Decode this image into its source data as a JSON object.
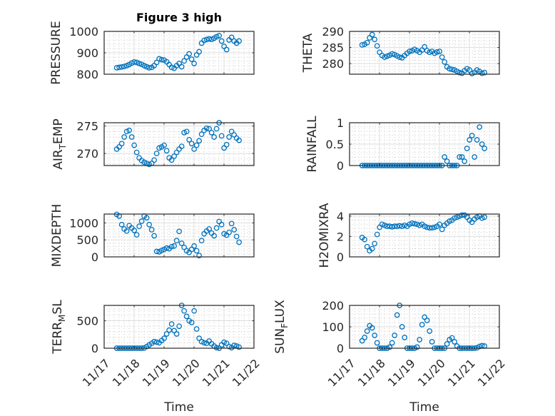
{
  "chart_data": {
    "type": "scatter",
    "title": "Figure 3 high",
    "xlabel": "Time",
    "x_unit": "days since 11/17 00:00",
    "xlim": [
      0,
      5
    ],
    "xticks": [
      0,
      1,
      2,
      3,
      4,
      5
    ],
    "xtick_labels": [
      "11/17",
      "11/18",
      "11/19",
      "11/20",
      "11/21",
      "11/22"
    ],
    "grid": "major and minor",
    "marker": "open circle",
    "marker_color": "#0072BD",
    "x": [
      0.42,
      0.503,
      0.587,
      0.67,
      0.753,
      0.837,
      0.92,
      1.003,
      1.087,
      1.17,
      1.253,
      1.337,
      1.42,
      1.503,
      1.587,
      1.67,
      1.753,
      1.837,
      1.92,
      2.003,
      2.087,
      2.17,
      2.253,
      2.337,
      2.42,
      2.503,
      2.587,
      2.67,
      2.753,
      2.837,
      2.92,
      3.003,
      3.087,
      3.17,
      3.253,
      3.337,
      3.42,
      3.503,
      3.587,
      3.67,
      3.753,
      3.837,
      3.92,
      4.003,
      4.087,
      4.17,
      4.253,
      4.337,
      4.42,
      4.503
    ],
    "subplots": [
      {
        "ylabel": [
          {
            "t": "PRESSURE"
          }
        ],
        "ylim": [
          800,
          1000
        ],
        "yticks": [
          800,
          900,
          1000
        ],
        "ytick_labels": [
          "800",
          "900",
          "1000"
        ],
        "values": [
          830,
          832,
          834,
          836,
          840,
          845,
          852,
          857,
          855,
          850,
          846,
          840,
          835,
          830,
          832,
          840,
          855,
          872,
          868,
          866,
          858,
          845,
          832,
          828,
          840,
          850,
          835,
          862,
          880,
          895,
          870,
          850,
          890,
          905,
          945,
          958,
          962,
          965,
          963,
          968,
          975,
          980,
          955,
          930,
          915,
          960,
          972,
          955,
          945,
          955
        ]
      },
      {
        "ylabel": [
          {
            "t": "THETA"
          }
        ],
        "ylim": [
          276.7,
          290
        ],
        "yticks": [
          280,
          285,
          290
        ],
        "ytick_labels": [
          "280",
          "285",
          "290"
        ],
        "values": [
          285.8,
          286.0,
          286.5,
          288.0,
          289.0,
          287.5,
          285.5,
          283.5,
          282.5,
          282.0,
          282.3,
          282.6,
          283.0,
          282.8,
          282.4,
          282.0,
          281.8,
          282.5,
          283.2,
          283.8,
          284.0,
          284.4,
          284.0,
          283.5,
          284.2,
          285.2,
          284.0,
          283.5,
          283.8,
          283.2,
          283.6,
          283.8,
          282.0,
          280.5,
          279.0,
          278.4,
          278.2,
          278.0,
          277.6,
          277.2,
          277.0,
          277.8,
          278.4,
          278.0,
          276.9,
          277.3,
          278.0,
          277.6,
          277.0,
          277.2
        ]
      },
      {
        "ylabel": [
          {
            "t": "AIR"
          },
          {
            "t": "T",
            "sub": true
          },
          {
            "t": "EMP"
          }
        ],
        "ylim": [
          267.8,
          275.6
        ],
        "yticks": [
          270,
          275
        ],
        "ytick_labels": [
          "270",
          "275"
        ],
        "values": [
          270.8,
          271.2,
          271.8,
          273.0,
          274.0,
          274.2,
          273.0,
          271.5,
          270.2,
          269.2,
          268.7,
          268.4,
          268.2,
          268.0,
          268.2,
          268.8,
          270.0,
          271.0,
          271.2,
          271.5,
          270.5,
          269.2,
          268.8,
          269.5,
          270.2,
          270.8,
          271.3,
          273.8,
          274.0,
          272.5,
          271.8,
          270.8,
          271.5,
          272.3,
          273.5,
          274.2,
          274.6,
          274.5,
          273.8,
          273.0,
          274.5,
          275.6,
          273.2,
          271.0,
          271.6,
          273.0,
          274.0,
          273.4,
          272.8,
          272.4
        ]
      },
      {
        "ylabel": [
          {
            "t": "RAINFALL"
          }
        ],
        "ylim": [
          0,
          1
        ],
        "yticks": [
          0,
          0.5,
          1
        ],
        "ytick_labels": [
          "0",
          "0.5",
          "1"
        ],
        "values": [
          0,
          0,
          0,
          0,
          0,
          0,
          0,
          0,
          0,
          0,
          0,
          0,
          0,
          0,
          0,
          0,
          0,
          0,
          0,
          0,
          0,
          0,
          0,
          0,
          0,
          0,
          0,
          0,
          0,
          0,
          0,
          0,
          0,
          0.2,
          0.1,
          0,
          0,
          0,
          0,
          0.2,
          0.2,
          0.1,
          0.4,
          0.6,
          0.7,
          0.2,
          0.6,
          0.9,
          0.5,
          0.4
        ]
      },
      {
        "ylabel": [
          {
            "t": "MIXDEPTH"
          }
        ],
        "ylim": [
          0,
          1260
        ],
        "yticks": [
          0,
          500,
          1000
        ],
        "ytick_labels": [
          "0",
          "500",
          "1000"
        ],
        "values": [
          1250,
          1200,
          950,
          820,
          760,
          920,
          850,
          780,
          650,
          900,
          1050,
          1200,
          1150,
          950,
          800,
          620,
          160,
          150,
          190,
          220,
          260,
          240,
          300,
          320,
          480,
          750,
          400,
          280,
          180,
          130,
          220,
          320,
          180,
          40,
          480,
          680,
          760,
          820,
          700,
          620,
          850,
          1040,
          950,
          680,
          640,
          720,
          980,
          800,
          600,
          430
        ]
      },
      {
        "ylabel": [
          {
            "t": "H2OMIXRA"
          }
        ],
        "ylim": [
          0,
          4.2
        ],
        "yticks": [
          0,
          2,
          4
        ],
        "ytick_labels": [
          "0",
          "2",
          "4"
        ],
        "values": [
          1.9,
          1.7,
          1.0,
          0.6,
          0.8,
          1.3,
          2.2,
          2.9,
          3.2,
          3.1,
          3.0,
          3.0,
          2.95,
          3.0,
          3.0,
          3.05,
          3.0,
          3.1,
          3.0,
          3.2,
          3.3,
          3.25,
          3.2,
          3.1,
          3.2,
          3.0,
          2.9,
          2.85,
          2.85,
          2.9,
          3.0,
          3.2,
          2.7,
          3.1,
          3.3,
          3.5,
          3.6,
          3.8,
          3.9,
          4.0,
          4.1,
          4.1,
          3.9,
          3.6,
          3.4,
          3.7,
          3.9,
          4.0,
          3.8,
          3.9
        ]
      },
      {
        "ylabel": [
          {
            "t": "TERR"
          },
          {
            "t": "M",
            "sub": true
          },
          {
            "t": "SL"
          }
        ],
        "ylim": [
          0,
          780
        ],
        "yticks": [
          0,
          500
        ],
        "ytick_labels": [
          "0",
          "500"
        ],
        "values": [
          0,
          0,
          0,
          0,
          0,
          0,
          0,
          0,
          0,
          0,
          0,
          5,
          30,
          60,
          90,
          120,
          110,
          100,
          140,
          180,
          260,
          330,
          440,
          320,
          260,
          400,
          780,
          680,
          580,
          500,
          470,
          680,
          350,
          180,
          120,
          100,
          90,
          130,
          80,
          40,
          10,
          0,
          60,
          110,
          90,
          30,
          10,
          50,
          40,
          20
        ]
      },
      {
        "ylabel": [
          {
            "t": "SUN"
          },
          {
            "t": "F",
            "sub": true
          },
          {
            "t": "LUX"
          }
        ],
        "ylim": [
          0,
          200
        ],
        "yticks": [
          0,
          100,
          200
        ],
        "ytick_labels": [
          "0",
          "100",
          "200"
        ],
        "values": [
          35,
          50,
          80,
          105,
          95,
          60,
          25,
          0,
          0,
          0,
          0,
          5,
          25,
          60,
          155,
          200,
          100,
          50,
          0,
          0,
          0,
          0,
          5,
          40,
          110,
          145,
          130,
          80,
          30,
          0,
          0,
          0,
          0,
          0,
          20,
          40,
          48,
          30,
          10,
          0,
          0,
          0,
          0,
          0,
          0,
          0,
          2,
          8,
          12,
          10
        ]
      }
    ]
  }
}
